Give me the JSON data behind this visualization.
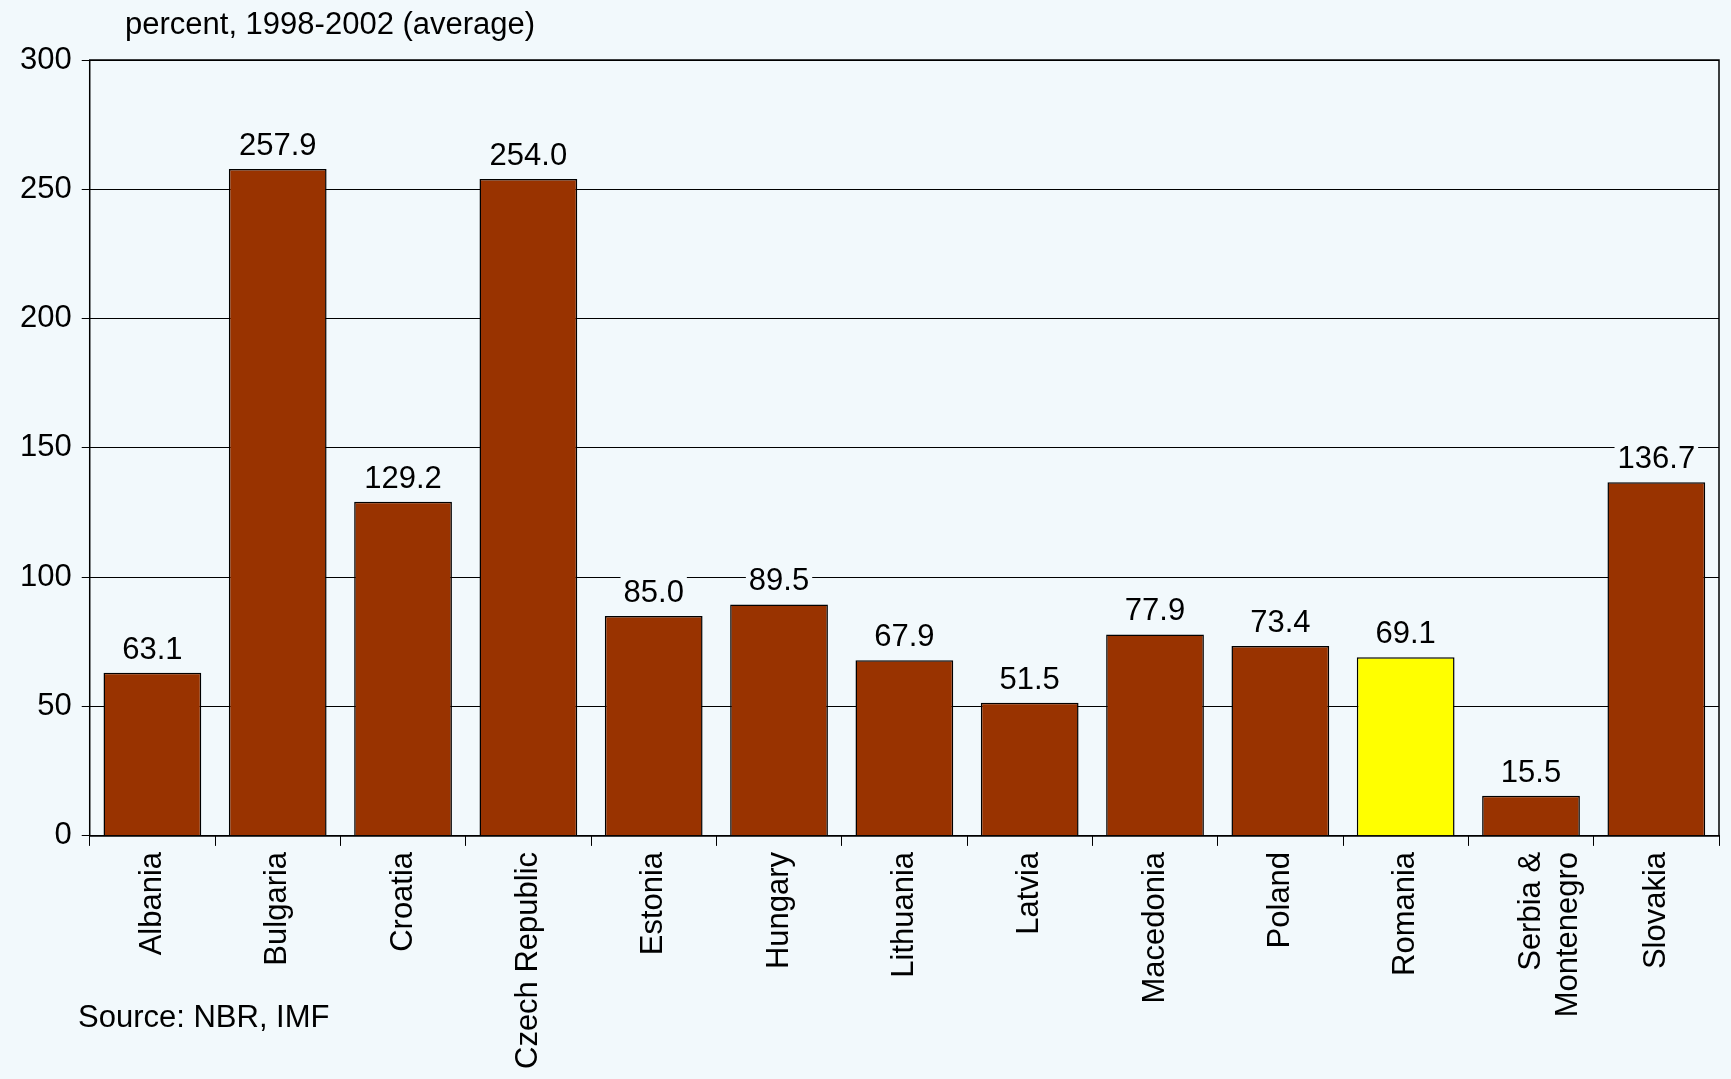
{
  "chart_data": {
    "type": "bar",
    "ylabel": "percent, 1998-2002 (average)",
    "categories": [
      "Albania",
      "Bulgaria",
      "Croatia",
      "Czech Republic",
      "Estonia",
      "Hungary",
      "Lithuania",
      "Latvia",
      "Macedonia",
      "Poland",
      "Romania",
      "Serbia &\nMontenegro",
      "Slovakia"
    ],
    "values": [
      63.1,
      257.9,
      129.2,
      254.0,
      85.0,
      89.5,
      67.9,
      51.5,
      77.9,
      73.4,
      69.1,
      15.5,
      136.7
    ],
    "value_labels": [
      "63.1",
      "257.9",
      "129.2",
      "254.0",
      "85.0",
      "89.5",
      "67.9",
      "51.5",
      "77.9",
      "73.4",
      "69.1",
      "15.5",
      "136.7"
    ],
    "colors": [
      "#993300",
      "#993300",
      "#993300",
      "#993300",
      "#993300",
      "#993300",
      "#993300",
      "#993300",
      "#993300",
      "#993300",
      "#ffff00",
      "#993300",
      "#993300"
    ],
    "ylim": [
      0,
      300
    ],
    "yticks": [
      0,
      50,
      100,
      150,
      200,
      250,
      300
    ],
    "grid": "y",
    "annotations": [
      "Source: NBR, IMF"
    ]
  }
}
